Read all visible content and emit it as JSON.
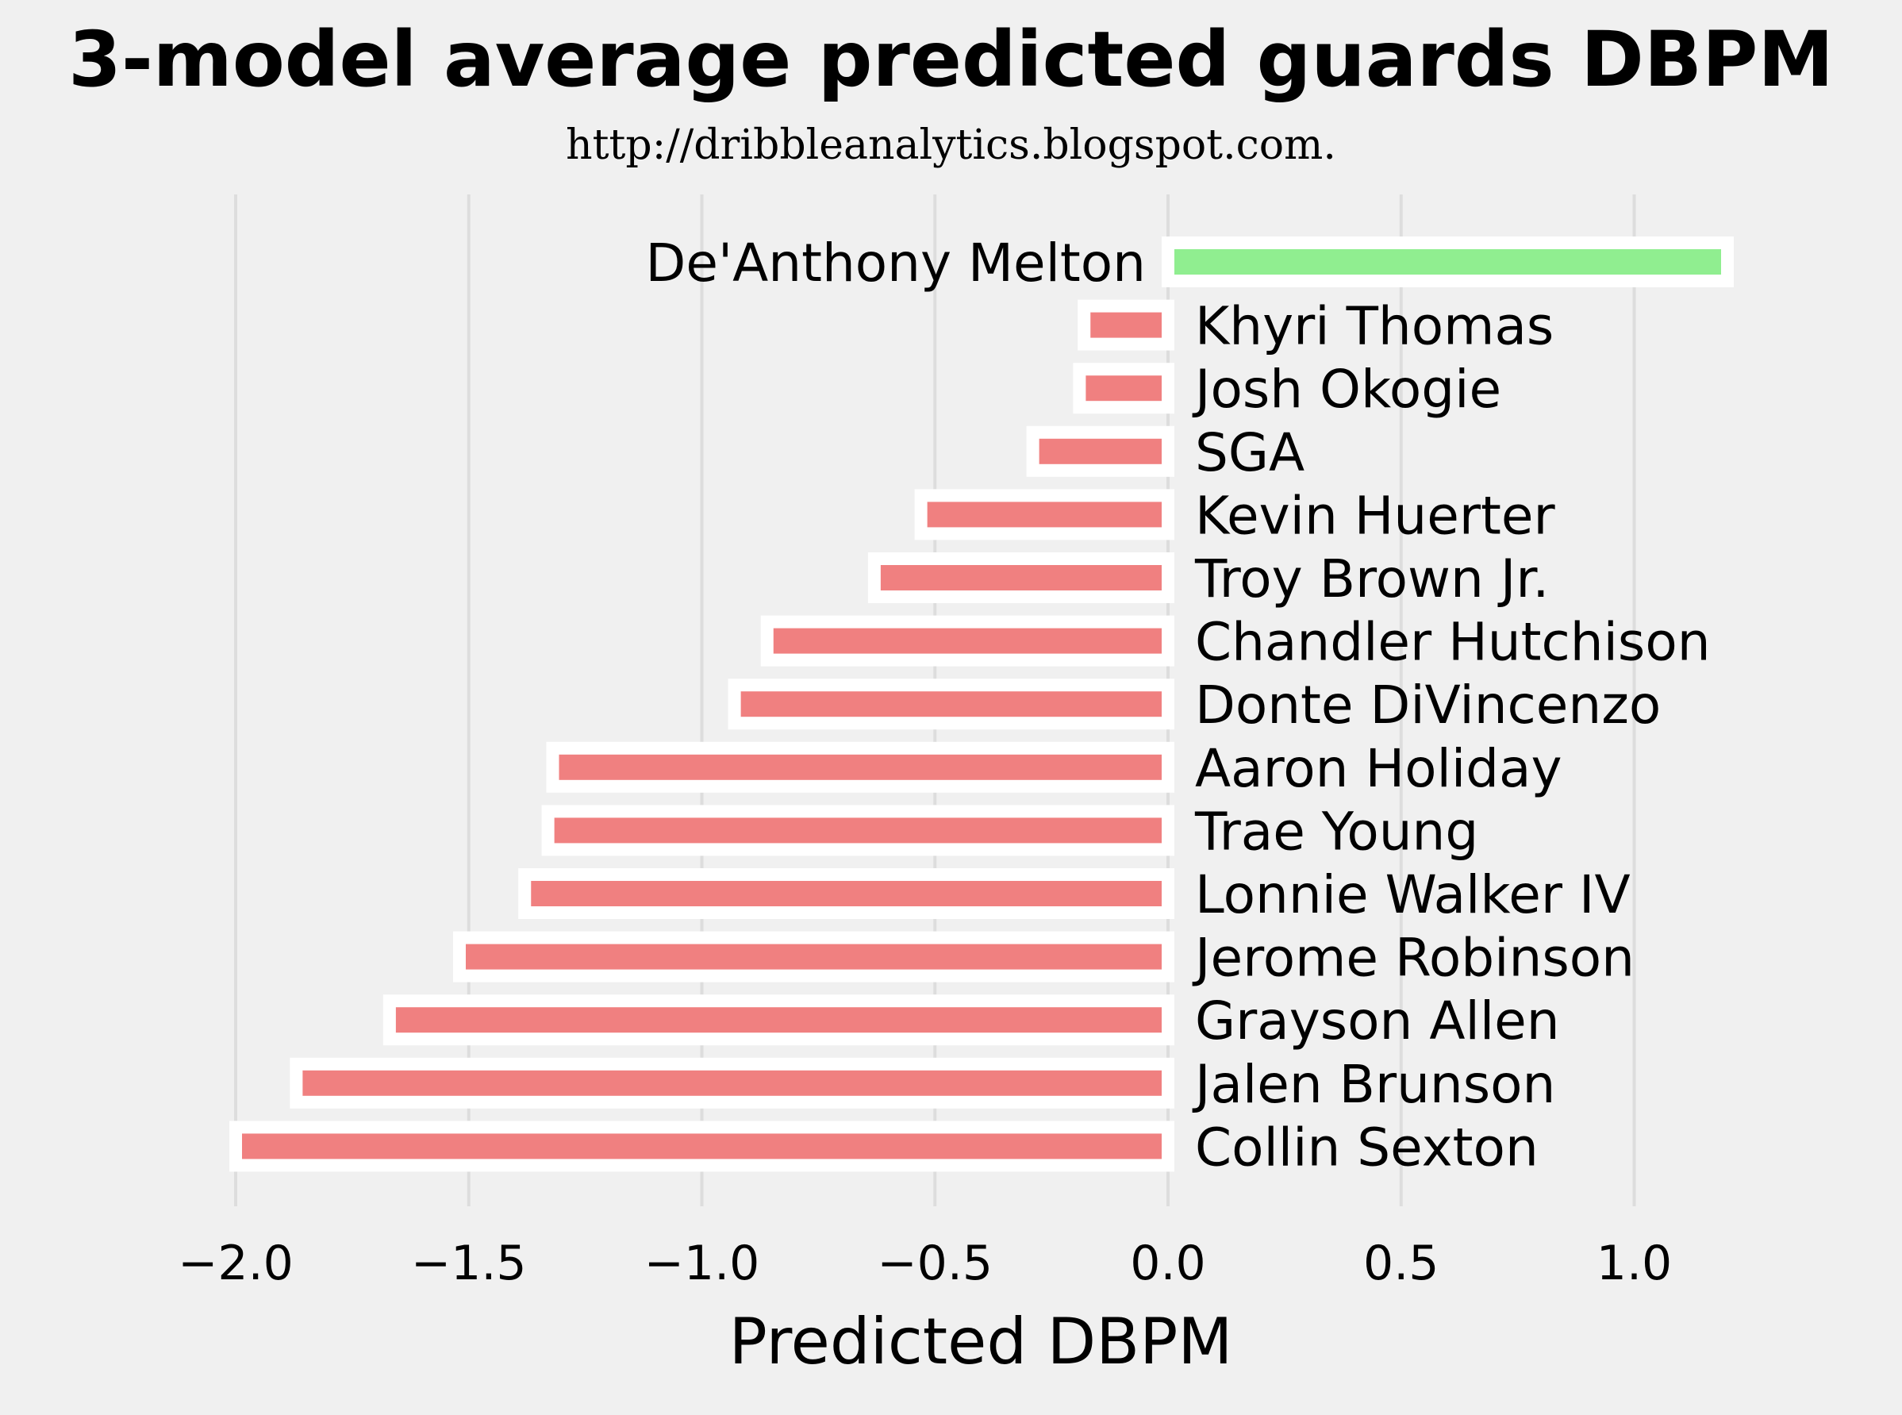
{
  "chart_data": {
    "type": "bar",
    "orientation": "horizontal",
    "title": "3-model average predicted guards DBPM",
    "subtitle": "http://dribbleanalytics.blogspot.com.",
    "xlabel": "Predicted DBPM",
    "ylabel": "",
    "xlim": [
      -2.05,
      1.45
    ],
    "xticks": [
      -2.0,
      -1.5,
      -1.0,
      -0.5,
      0.0,
      0.5,
      1.0
    ],
    "xtick_labels": [
      "−2.0",
      "−1.5",
      "−1.0",
      "−0.5",
      "0.0",
      "0.5",
      "1.0"
    ],
    "grid": "vertical",
    "categories": [
      "De'Anthony Melton",
      "Khyri Thomas",
      "Josh Okogie",
      "SGA",
      "Kevin Huerter",
      "Troy Brown Jr.",
      "Chandler Hutchison",
      "Donte DiVincenzo",
      "Aaron Holiday",
      "Trae Young",
      "Lonnie Walker IV",
      "Jerome Robinson",
      "Grayson Allen",
      "Jalen Brunson",
      "Collin Sexton"
    ],
    "values": [
      1.2,
      -0.18,
      -0.19,
      -0.29,
      -0.53,
      -0.63,
      -0.86,
      -0.93,
      -1.32,
      -1.33,
      -1.38,
      -1.52,
      -1.67,
      -1.87,
      -2.0
    ],
    "colors": {
      "positive": "#90ee90",
      "negative": "#f08080",
      "bar_edge": "#ffffff",
      "background": "#f0f0f0",
      "grid": "#dddddd",
      "text": "#000000"
    }
  }
}
